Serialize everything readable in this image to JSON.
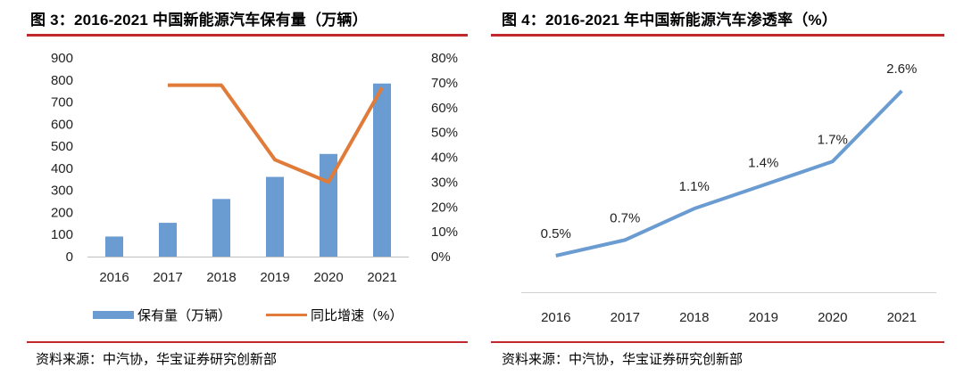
{
  "figure_left": {
    "title": "图 3：2016-2021 中国新能源汽车保有量（万辆）",
    "source": "资料来源：中汽协，华宝证券研究创新部"
  },
  "figure_right": {
    "title": "图 4：2016-2021 年中国新能源汽车渗透率（%）",
    "source": "资料来源：中汽协，华宝证券研究创新部"
  },
  "colors": {
    "bar": "#6a9bd1",
    "growth_line": "#e07b39",
    "penetration_line": "#6a9bd1",
    "rule": "#c0282d"
  },
  "chart_data": [
    {
      "type": "bar",
      "title": "2016-2021 中国新能源汽车保有量（万辆）",
      "categories": [
        "2016",
        "2017",
        "2018",
        "2019",
        "2020",
        "2021"
      ],
      "series": [
        {
          "name": "保有量（万辆）",
          "kind": "bar",
          "axis": "left",
          "values": [
            91,
            153,
            261,
            361,
            465,
            784
          ]
        },
        {
          "name": "同比增速（%）",
          "kind": "line",
          "axis": "right",
          "values": [
            null,
            69,
            69,
            39,
            30,
            68
          ]
        }
      ],
      "y_left": {
        "min": 0,
        "max": 900,
        "ticks": [
          "0",
          "100",
          "200",
          "300",
          "400",
          "500",
          "600",
          "700",
          "800",
          "900"
        ]
      },
      "y_right": {
        "min": 0,
        "max": 80,
        "ticks": [
          "0%",
          "10%",
          "20%",
          "30%",
          "40%",
          "50%",
          "60%",
          "70%",
          "80%"
        ]
      },
      "legend": {
        "bar_label": "保有量（万辆）",
        "line_label": "同比增速（%）",
        "position": "bottom"
      },
      "grid": false
    },
    {
      "type": "line",
      "title": "2016-2021 年中国新能源汽车渗透率（%）",
      "categories": [
        "2016",
        "2017",
        "2018",
        "2019",
        "2020",
        "2021"
      ],
      "series": [
        {
          "name": "渗透率",
          "values": [
            0.5,
            0.7,
            1.1,
            1.4,
            1.7,
            2.6
          ],
          "labels": [
            "0.5%",
            "0.7%",
            "1.1%",
            "1.4%",
            "1.7%",
            "2.6%"
          ]
        }
      ],
      "y_axis": {
        "min": 0.5,
        "max": 2.6,
        "visible": false
      },
      "grid": false
    }
  ]
}
